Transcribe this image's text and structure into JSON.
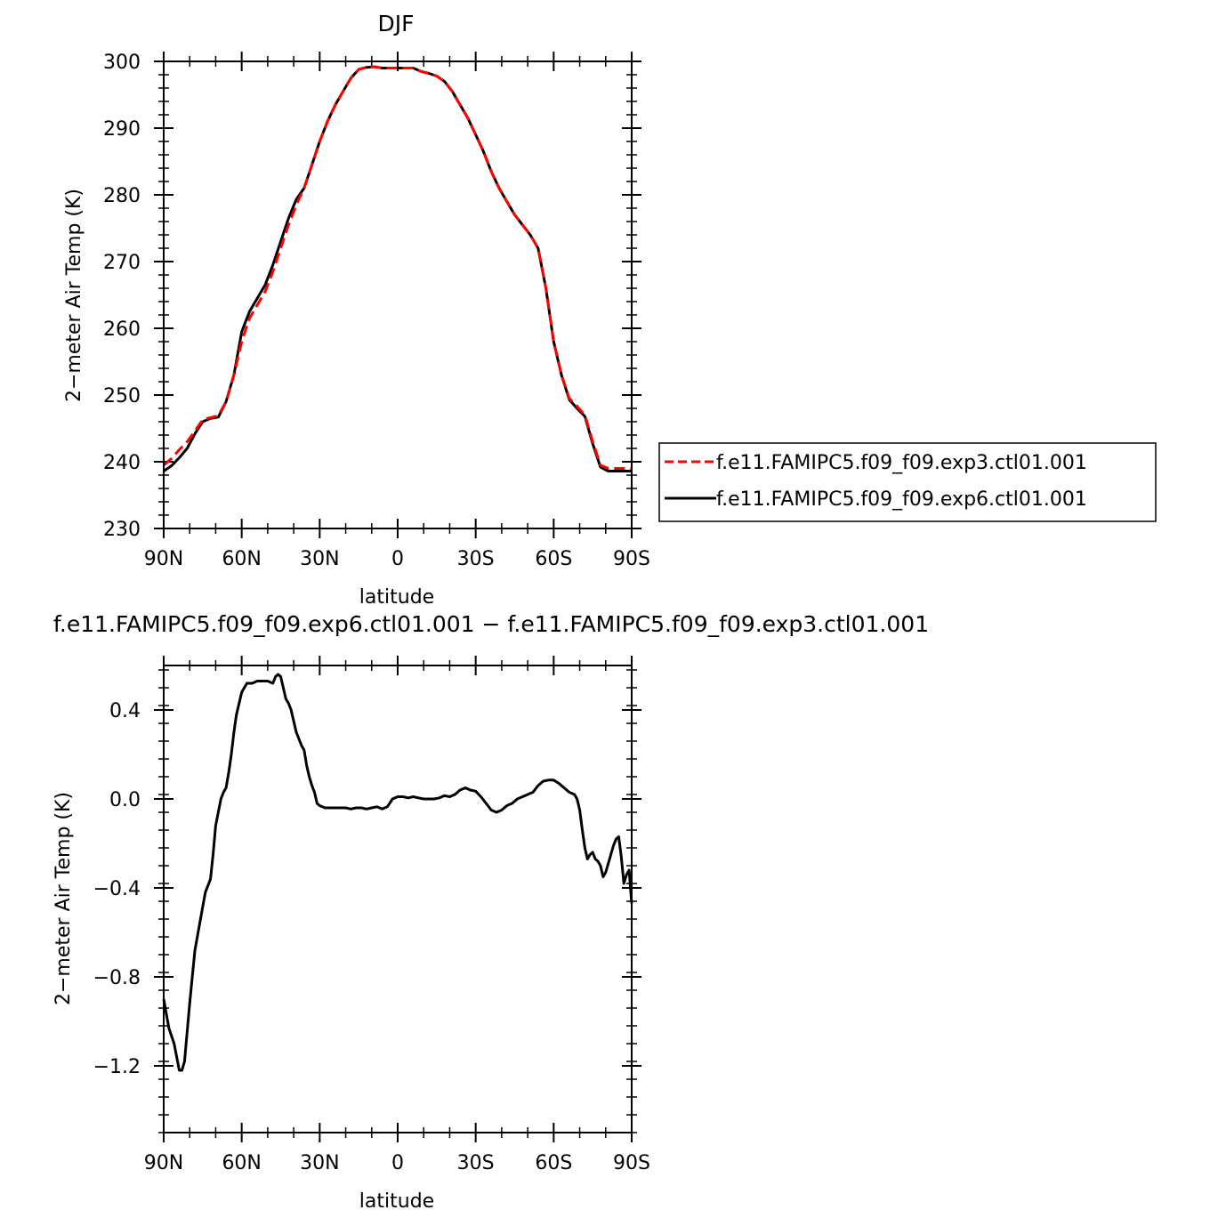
{
  "chart_data": [
    {
      "type": "line",
      "title": "DJF",
      "xlabel": "latitude",
      "ylabel": "2−meter Air Temp (K)",
      "xlim": [
        90,
        -90
      ],
      "ylim": [
        230,
        300
      ],
      "xticks": [
        90,
        60,
        30,
        0,
        -30,
        -60,
        -90
      ],
      "xtick_labels": [
        "90N",
        "60N",
        "30N",
        "0",
        "30S",
        "60S",
        "90S"
      ],
      "yticks": [
        230,
        240,
        250,
        260,
        270,
        280,
        290,
        300
      ],
      "ytick_labels": [
        "230",
        "240",
        "250",
        "260",
        "270",
        "280",
        "290",
        "300"
      ],
      "grid": false,
      "legend": "right",
      "series": [
        {
          "name": "f.e11.FAMIPC5.f09_f09.exp3.ctl01.001",
          "color": "#ff0000",
          "dash": "dashed",
          "x": [
            90,
            87,
            84,
            81,
            78,
            75,
            72,
            69,
            66,
            63,
            60,
            57,
            54,
            51,
            48,
            45,
            42,
            39,
            36,
            33,
            30,
            27,
            24,
            21,
            18,
            15,
            12,
            9,
            6,
            3,
            0,
            -3,
            -6,
            -9,
            -12,
            -15,
            -18,
            -21,
            -24,
            -27,
            -30,
            -33,
            -36,
            -39,
            -42,
            -45,
            -48,
            -51,
            -54,
            -57,
            -60,
            -63,
            -66,
            -69,
            -72,
            -75,
            -78,
            -81,
            -84,
            -87,
            -90
          ],
          "y": [
            239.5,
            240.5,
            241.8,
            243.0,
            244.6,
            246.3,
            246.6,
            246.9,
            249.0,
            253.0,
            258.0,
            261.5,
            263.5,
            265.5,
            268.5,
            272.0,
            275.5,
            278.5,
            281.0,
            284.5,
            288.0,
            291.0,
            293.5,
            295.5,
            297.5,
            298.8,
            299.1,
            299.2,
            299.0,
            299.0,
            299.0,
            299.0,
            299.0,
            298.5,
            298.2,
            297.8,
            297.0,
            295.5,
            293.5,
            291.5,
            289.0,
            286.5,
            283.5,
            281.0,
            279.0,
            277.0,
            275.5,
            274.0,
            272.0,
            266.0,
            258.0,
            253.0,
            249.5,
            248.3,
            247.0,
            243.0,
            239.5,
            239.0,
            239.0,
            239.0,
            239.0
          ]
        },
        {
          "name": "f.e11.FAMIPC5.f09_f09.exp6.ctl01.001",
          "color": "#000000",
          "dash": "solid",
          "x": [
            90,
            87,
            84,
            81,
            78,
            75,
            72,
            69,
            66,
            63,
            60,
            57,
            54,
            51,
            48,
            45,
            42,
            39,
            36,
            33,
            30,
            27,
            24,
            21,
            18,
            15,
            12,
            9,
            6,
            3,
            0,
            -3,
            -6,
            -9,
            -12,
            -15,
            -18,
            -21,
            -24,
            -27,
            -30,
            -33,
            -36,
            -39,
            -42,
            -45,
            -48,
            -51,
            -54,
            -57,
            -60,
            -63,
            -66,
            -69,
            -72,
            -75,
            -78,
            -81,
            -84,
            -87,
            -90
          ],
          "y": [
            238.6,
            239.4,
            240.6,
            242.0,
            244.2,
            246.0,
            246.5,
            246.7,
            249.0,
            253.0,
            259.5,
            262.5,
            264.5,
            266.5,
            269.5,
            273.0,
            276.5,
            279.3,
            281.0,
            284.5,
            288.0,
            291.0,
            293.5,
            295.5,
            297.5,
            298.8,
            299.1,
            299.2,
            299.0,
            299.0,
            299.0,
            299.0,
            299.0,
            298.5,
            298.2,
            297.8,
            297.0,
            295.5,
            293.5,
            291.5,
            289.0,
            286.5,
            283.5,
            281.0,
            279.0,
            277.0,
            275.5,
            274.0,
            272.0,
            266.0,
            258.0,
            253.0,
            249.3,
            248.0,
            246.8,
            242.7,
            239.2,
            238.6,
            238.6,
            238.6,
            238.6
          ]
        }
      ]
    },
    {
      "type": "line",
      "title": "f.e11.FAMIPC5.f09_f09.exp6.ctl01.001 − f.e11.FAMIPC5.f09_f09.exp3.ctl01.001",
      "xlabel": "latitude",
      "ylabel": "2−meter Air Temp (K)",
      "xlim": [
        90,
        -90
      ],
      "ylim": [
        -1.5,
        0.6
      ],
      "xticks": [
        90,
        60,
        30,
        0,
        -30,
        -60,
        -90
      ],
      "xtick_labels": [
        "90N",
        "60N",
        "30N",
        "0",
        "30S",
        "60S",
        "90S"
      ],
      "yticks": [
        -1.2,
        -0.8,
        -0.4,
        0.0,
        0.4
      ],
      "ytick_labels": [
        "−1.2",
        "−0.8",
        "−0.4",
        "0.0",
        "0.4"
      ],
      "grid": false,
      "series": [
        {
          "color": "#000000",
          "dash": "solid",
          "x": [
            90,
            88,
            86,
            84,
            83,
            82,
            81,
            80,
            79,
            78,
            76,
            74,
            72,
            71,
            70,
            68,
            67,
            66,
            65,
            64,
            63,
            62,
            60,
            58,
            56,
            54,
            52,
            50,
            48,
            47,
            46,
            45,
            44,
            43,
            42,
            41,
            40,
            39,
            38,
            37,
            36,
            35,
            34,
            33,
            32,
            31,
            30,
            28,
            26,
            24,
            22,
            20,
            18,
            16,
            14,
            12,
            10,
            8,
            6,
            4,
            2,
            0,
            -2,
            -4,
            -6,
            -8,
            -10,
            -12,
            -14,
            -16,
            -18,
            -20,
            -22,
            -24,
            -26,
            -28,
            -30,
            -32,
            -34,
            -36,
            -38,
            -40,
            -42,
            -44,
            -46,
            -48,
            -50,
            -52,
            -54,
            -56,
            -58,
            -60,
            -62,
            -64,
            -66,
            -68,
            -69,
            -70,
            -71,
            -72,
            -73,
            -74,
            -75,
            -76,
            -77,
            -78,
            -79,
            -80,
            -81,
            -82,
            -83,
            -84,
            -85,
            -86,
            -87,
            -88,
            -89,
            -90
          ],
          "y": [
            -0.9,
            -1.03,
            -1.1,
            -1.22,
            -1.22,
            -1.18,
            -1.05,
            -0.92,
            -0.8,
            -0.68,
            -0.55,
            -0.42,
            -0.36,
            -0.25,
            -0.12,
            0.0,
            0.03,
            0.05,
            0.12,
            0.2,
            0.3,
            0.38,
            0.48,
            0.52,
            0.52,
            0.53,
            0.53,
            0.53,
            0.52,
            0.55,
            0.56,
            0.55,
            0.5,
            0.45,
            0.43,
            0.4,
            0.35,
            0.3,
            0.27,
            0.24,
            0.22,
            0.15,
            0.1,
            0.06,
            0.03,
            -0.02,
            -0.03,
            -0.04,
            -0.04,
            -0.04,
            -0.04,
            -0.04,
            -0.045,
            -0.04,
            -0.04,
            -0.045,
            -0.04,
            -0.035,
            -0.045,
            -0.035,
            0.0,
            0.01,
            0.01,
            0.005,
            0.01,
            0.005,
            0.0,
            0.0,
            0.0,
            0.005,
            0.015,
            0.01,
            0.02,
            0.04,
            0.05,
            0.04,
            0.035,
            0.01,
            -0.02,
            -0.05,
            -0.06,
            -0.05,
            -0.03,
            -0.02,
            0.0,
            0.01,
            0.02,
            0.03,
            0.06,
            0.08,
            0.085,
            0.085,
            0.07,
            0.05,
            0.03,
            0.02,
            0.0,
            -0.05,
            -0.14,
            -0.22,
            -0.27,
            -0.25,
            -0.24,
            -0.27,
            -0.28,
            -0.3,
            -0.35,
            -0.33,
            -0.29,
            -0.25,
            -0.21,
            -0.18,
            -0.17,
            -0.26,
            -0.38,
            -0.34,
            -0.32,
            -0.47
          ]
        }
      ]
    }
  ]
}
